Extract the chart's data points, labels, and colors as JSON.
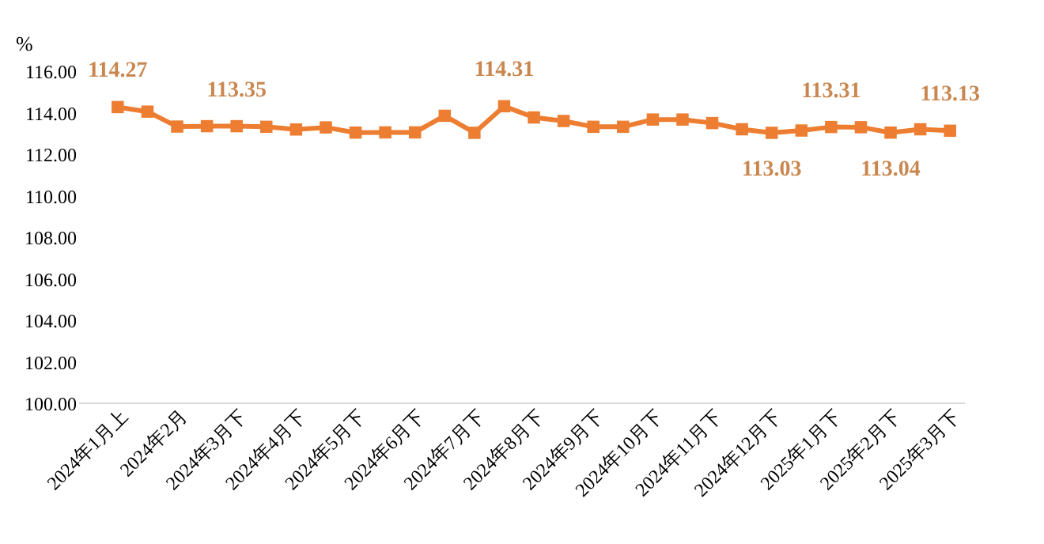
{
  "chart_data": {
    "type": "line",
    "ylabel": "%",
    "categories": [
      "2024年1月上",
      null,
      "2024年2月",
      null,
      "2024年3月下",
      null,
      "2024年4月下",
      null,
      "2024年5月下",
      null,
      "2024年6月下",
      null,
      "2024年7月下",
      null,
      "2024年8月下",
      null,
      "2024年9月下",
      null,
      "2024年10月下",
      null,
      "2024年11月下",
      null,
      "2024年12月下",
      null,
      "2025年1月下",
      null,
      "2025年2月下",
      null,
      "2025年3月下"
    ],
    "series": [
      {
        "color": "#ed7d31",
        "values": [
          114.27,
          114.05,
          113.33,
          113.35,
          113.35,
          113.32,
          113.19,
          113.29,
          113.04,
          113.05,
          113.05,
          113.85,
          113.03,
          114.31,
          113.77,
          113.6,
          113.32,
          113.32,
          113.67,
          113.67,
          113.5,
          113.2,
          113.03,
          113.14,
          113.31,
          113.3,
          113.04,
          113.2,
          113.13
        ],
        "value_labels": [
          "114.27",
          null,
          null,
          null,
          "113.35",
          null,
          null,
          null,
          null,
          null,
          null,
          null,
          null,
          "114.31",
          null,
          null,
          null,
          null,
          null,
          null,
          null,
          null,
          "113.03",
          null,
          "113.31",
          null,
          "113.04",
          null,
          "113.13"
        ]
      }
    ],
    "ylim": [
      100,
      116
    ],
    "yticks": [
      {
        "value": 100,
        "label": "100.00"
      },
      {
        "value": 102,
        "label": "102.00"
      },
      {
        "value": 104,
        "label": "104.00"
      },
      {
        "value": 106,
        "label": "106.00"
      },
      {
        "value": 108,
        "label": "108.00"
      },
      {
        "value": 110,
        "label": "110.00"
      },
      {
        "value": 112,
        "label": "112.00"
      },
      {
        "value": 114,
        "label": "114.00"
      },
      {
        "value": 116,
        "label": "116.00"
      }
    ],
    "marker": "square",
    "line_style": "solid",
    "grid": false
  }
}
